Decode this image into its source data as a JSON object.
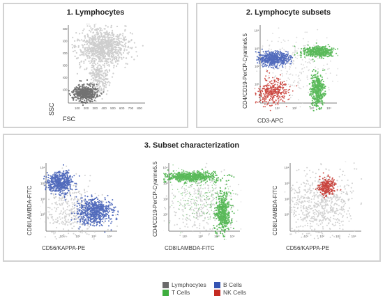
{
  "colors": {
    "lymphocytes": "#6b6b6b",
    "b_cells": "#3553b2",
    "t_cells": "#3fae3f",
    "nk_cells": "#c42a22",
    "background_events": "#c9c9c9",
    "panel_border": "#d2d2d2"
  },
  "panel1": {
    "title": "1. Lymphocytes",
    "plot": {
      "xlabel": "FSC",
      "ylabel": "SSC",
      "x_ticks": [
        "100",
        "200",
        "300",
        "400",
        "500",
        "600",
        "700",
        "800"
      ],
      "y_ticks": [
        "100",
        "200",
        "300",
        "400",
        "500",
        "600"
      ]
    }
  },
  "panel2": {
    "title": "2. Lymphocyte subsets",
    "plot": {
      "xlabel": "CD3-APC",
      "ylabel": "CD4/CD19-PerCP-Cyanine5.5",
      "x_ticks": [
        "10¹",
        "10²",
        "10³",
        "10⁴"
      ],
      "y_ticks": [
        "10¹",
        "10²",
        "10³",
        "10⁴"
      ]
    }
  },
  "panel3": {
    "title": "3. Subset characterization",
    "plot_a": {
      "xlabel": "CD56/KAPPA-PE",
      "ylabel": "CD8/LAMBDA-FITC",
      "x_ticks": [
        "10¹",
        "10²",
        "10³",
        "10⁴"
      ],
      "y_ticks": [
        "10¹",
        "10²",
        "10³",
        "10⁴"
      ]
    },
    "plot_b": {
      "xlabel": "CD8/LAMBDA-FITC",
      "ylabel": "CD4/CD19-PerCP-Cyanine5.5",
      "x_ticks": [
        "10¹",
        "10²",
        "10³",
        "10⁴"
      ],
      "y_ticks": [
        "10¹",
        "10²",
        "10³",
        "10⁴"
      ]
    },
    "plot_c": {
      "xlabel": "CD56/KAPPA-PE",
      "ylabel": "CD8/LAMBDA-FITC",
      "x_ticks": [
        "10¹",
        "10²",
        "10³",
        "10⁴"
      ],
      "y_ticks": [
        "10¹",
        "10²",
        "10³",
        "10⁴"
      ]
    }
  },
  "legend": {
    "items": [
      {
        "label": "Lymphocytes",
        "color": "#6b6b6b"
      },
      {
        "label": "B Cells",
        "color": "#3553b2"
      },
      {
        "label": "T Cells",
        "color": "#3fae3f"
      },
      {
        "label": "NK Cells",
        "color": "#c42a22"
      }
    ]
  }
}
